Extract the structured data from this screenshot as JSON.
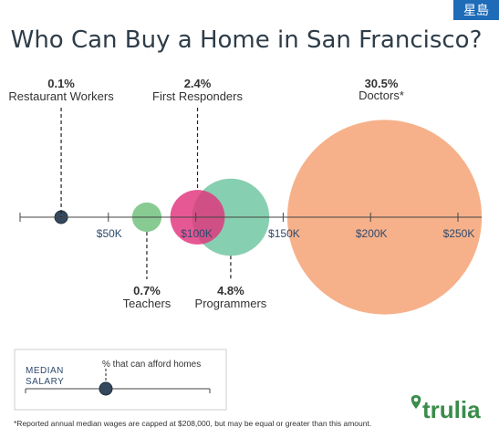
{
  "watermark": "星島",
  "chart_data": {
    "type": "bubble",
    "title": "Who Can Buy a Home in San Francisco?",
    "x_axis": {
      "ticks": [
        50000,
        100000,
        150000,
        200000,
        250000
      ],
      "tick_labels": [
        "$50K",
        "$100K",
        "$150K",
        "$200K",
        "$250K"
      ]
    },
    "series": [
      {
        "name": "Restaurant Workers",
        "median_salary": 23000,
        "percent": 0.1,
        "percent_label": "0.1%",
        "color": "#34495e"
      },
      {
        "name": "Teachers",
        "median_salary": 72000,
        "percent": 0.7,
        "percent_label": "0.7%",
        "color": "#6cc07a"
      },
      {
        "name": "First Responders",
        "median_salary": 101000,
        "percent": 2.4,
        "percent_label": "2.4%",
        "color": "#e0337c"
      },
      {
        "name": "Programmers",
        "median_salary": 120000,
        "percent": 4.8,
        "percent_label": "4.8%",
        "color": "#6cc5a0"
      },
      {
        "name": "Doctors",
        "median_salary": 208000,
        "percent": 30.5,
        "percent_label": "30.5%",
        "label_suffix": "*",
        "color": "#f4a070"
      }
    ]
  },
  "legend": {
    "median_salary_label": "MEDIAN\nSALARY",
    "percent_label": "% that can afford homes"
  },
  "brand": "trulia",
  "footnote": "*Reported annual median wages are capped at $208,000, but may be equal or greater than this amount."
}
